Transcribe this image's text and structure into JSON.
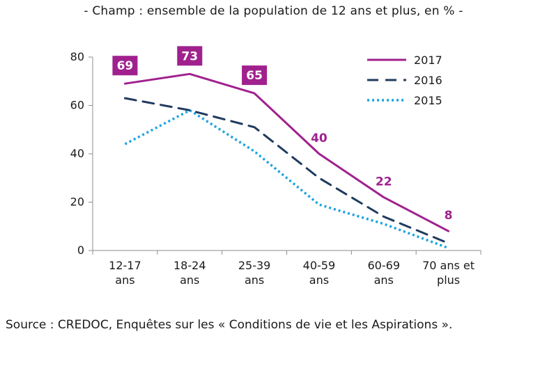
{
  "subtitle": "- Champ : ensemble de la population de 12 ans et plus, en % -",
  "source": "Source : CREDOC, Enquêtes sur les « Conditions de vie et les Aspirations ».",
  "chart_data": {
    "type": "line",
    "categories": [
      [
        "12-17",
        "ans"
      ],
      [
        "18-24",
        "ans"
      ],
      [
        "25-39",
        "ans"
      ],
      [
        "40-59",
        "ans"
      ],
      [
        "60-69",
        "ans"
      ],
      [
        "70 ans et",
        "plus"
      ]
    ],
    "ylim": [
      0,
      80
    ],
    "yticks": [
      0,
      20,
      40,
      60,
      80
    ],
    "grid": false,
    "legend_position": "top-right",
    "series": [
      {
        "name": "2017",
        "values": [
          69,
          73,
          65,
          40,
          22,
          8
        ],
        "color": "#a0218e",
        "style": "solid",
        "data_labels": [
          "69",
          "73",
          "65",
          "40",
          "22",
          "8"
        ],
        "label_boxed": [
          true,
          true,
          true,
          false,
          false,
          false
        ]
      },
      {
        "name": "2016",
        "values": [
          63,
          58,
          51,
          30,
          14,
          3
        ],
        "color": "#1f3a5f",
        "style": "dashed"
      },
      {
        "name": "2015",
        "values": [
          44,
          58,
          41,
          19,
          11,
          1
        ],
        "color": "#1aa3e0",
        "style": "dotted"
      }
    ]
  }
}
